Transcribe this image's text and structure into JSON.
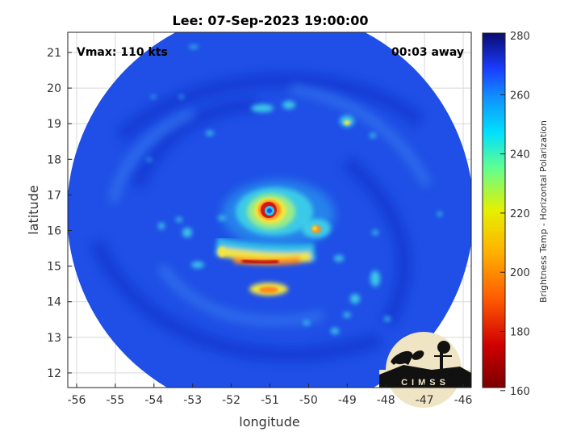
{
  "title": "Lee: 07-Sep-2023 19:00:00",
  "vmax_label": "Vmax: 110 kts",
  "time_away": "00:03 away",
  "xlabel": "longitude",
  "ylabel": "latitude",
  "x_ticks": [
    "-56",
    "-55",
    "-54",
    "-53",
    "-52",
    "-51",
    "-50",
    "-49",
    "-48",
    "-47",
    "-46"
  ],
  "y_ticks": [
    "21",
    "20",
    "19",
    "18",
    "17",
    "16",
    "15",
    "14",
    "13",
    "12"
  ],
  "colorbar": {
    "label": "Brightness Temp - Horizontal Polarization",
    "ticks": [
      "280",
      "260",
      "240",
      "220",
      "200",
      "180",
      "160"
    ]
  },
  "logo_text": "CIMSS",
  "colors": {
    "ocean_blue": "#1f4fe6",
    "deep_blue": "#0b2fc9",
    "cyan": "#2fd2ea",
    "yellow": "#f2e640",
    "orange": "#ff8a1a",
    "red": "#d61616",
    "dark_red": "#7a0000"
  }
}
